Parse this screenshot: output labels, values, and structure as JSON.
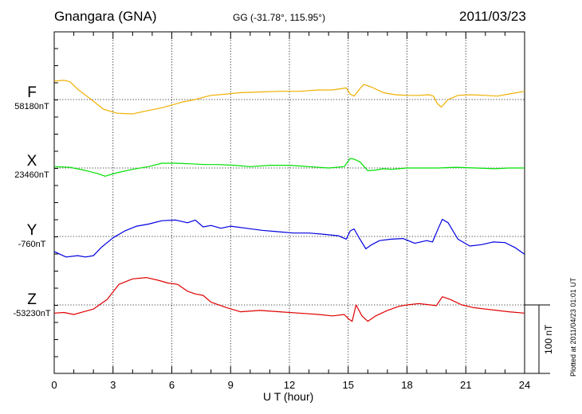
{
  "header": {
    "station": "Gnangara (GNA)",
    "coords": "GG (-31.78°, 115.95°)",
    "date": "2011/03/23",
    "plotted": "Plotted at 2011/04/23 01:01 UT"
  },
  "colors": {
    "F": "#f0b000",
    "X": "#00e000",
    "Y": "#0000e0",
    "Z": "#e00000",
    "axis": "#000000"
  },
  "chart_data": {
    "type": "line",
    "title": "Gnangara (GNA)",
    "xlabel": "U T (hour)",
    "ylabel": "",
    "xlim": [
      0,
      24
    ],
    "xticks": [
      "0",
      "3",
      "6",
      "9",
      "12",
      "15",
      "18",
      "21",
      "24"
    ],
    "scale_label": "100 nT",
    "scale_nT": 100,
    "grid": true,
    "series": [
      {
        "name": "F",
        "baseline_label": "58180nT",
        "color": "#f0b000",
        "x": [
          0,
          0.5,
          0.8,
          1.2,
          1.8,
          2.5,
          3.2,
          4.0,
          4.8,
          5.5,
          6.0,
          6.5,
          7.2,
          7.7,
          8.0,
          8.8,
          9.5,
          10.5,
          11.5,
          12.5,
          13.5,
          14.2,
          14.9,
          15.1,
          15.3,
          15.6,
          15.8,
          16.2,
          16.8,
          17.4,
          18.0,
          18.6,
          19.1,
          19.35,
          19.55,
          19.75,
          20.1,
          20.6,
          21.2,
          22.0,
          22.6,
          23.2,
          24.0
        ],
        "y": [
          27,
          28,
          26,
          15,
          2,
          -14,
          -20,
          -21,
          -16,
          -12,
          -8,
          -4,
          0,
          4,
          6,
          8,
          10,
          11,
          12,
          12,
          14,
          14,
          17,
          8,
          5,
          16,
          22,
          18,
          10,
          7,
          6,
          6,
          7,
          5,
          -6,
          -11,
          0,
          6,
          7,
          6,
          5,
          8,
          12
        ]
      },
      {
        "name": "X",
        "baseline_label": "23460nT",
        "color": "#00e000",
        "x": [
          0,
          0.8,
          1.5,
          2.2,
          2.6,
          3.2,
          4.0,
          4.8,
          5.5,
          6.2,
          7.0,
          7.7,
          8.4,
          9.2,
          10.0,
          11.0,
          12.0,
          13.0,
          14.0,
          14.8,
          15.1,
          15.3,
          15.6,
          16.0,
          16.4,
          16.8,
          17.2,
          17.6,
          18.0,
          18.8,
          19.6,
          20.5,
          21.5,
          22.5,
          23.2,
          24.0
        ],
        "y": [
          2,
          1,
          -3,
          -8,
          -12,
          -7,
          -2,
          2,
          7,
          7,
          6,
          5,
          5,
          4,
          2,
          4,
          4,
          2,
          0,
          2,
          14,
          13,
          9,
          -4,
          -3,
          -1,
          -2,
          -1,
          0,
          0,
          0,
          1,
          0,
          -1,
          0,
          0
        ]
      },
      {
        "name": "Y",
        "baseline_label": "-760nT",
        "color": "#0000e0",
        "x": [
          0,
          0.6,
          1.2,
          1.6,
          2.0,
          2.4,
          3.0,
          3.6,
          4.2,
          4.8,
          5.5,
          6.2,
          6.8,
          7.2,
          7.6,
          8.0,
          8.5,
          9.0,
          9.8,
          10.6,
          11.4,
          12.2,
          13.0,
          13.8,
          14.5,
          14.9,
          15.1,
          15.3,
          15.6,
          15.9,
          16.2,
          16.6,
          17.2,
          17.8,
          18.4,
          19.0,
          19.3,
          19.6,
          19.8,
          20.1,
          20.6,
          21.2,
          21.8,
          22.4,
          23.0,
          23.5,
          24.0
        ],
        "y": [
          -22,
          -30,
          -28,
          -30,
          -28,
          -16,
          -2,
          8,
          15,
          18,
          23,
          24,
          20,
          24,
          14,
          16,
          12,
          15,
          12,
          9,
          7,
          5,
          5,
          3,
          1,
          -4,
          8,
          11,
          -4,
          -18,
          -12,
          -6,
          -4,
          -3,
          -10,
          -6,
          -8,
          12,
          25,
          20,
          -4,
          -14,
          -12,
          -8,
          -9,
          -16,
          -26
        ]
      },
      {
        "name": "Z",
        "baseline_label": "-53230nT",
        "color": "#e00000",
        "x": [
          0,
          0.5,
          1.0,
          1.5,
          2.0,
          2.3,
          2.7,
          3.3,
          4.0,
          4.7,
          5.3,
          5.8,
          6.3,
          6.8,
          7.2,
          7.6,
          8.0,
          8.8,
          9.5,
          10.5,
          11.5,
          12.5,
          13.5,
          14.2,
          14.8,
          15.0,
          15.2,
          15.4,
          15.7,
          16.0,
          16.4,
          17.0,
          17.6,
          18.0,
          18.6,
          19.2,
          19.5,
          19.8,
          20.2,
          20.8,
          21.4,
          22.0,
          22.6,
          23.2,
          24.0
        ],
        "y": [
          -12,
          -11,
          -14,
          -10,
          -6,
          0,
          8,
          30,
          38,
          40,
          36,
          32,
          30,
          20,
          16,
          14,
          4,
          -4,
          -10,
          -8,
          -10,
          -12,
          -14,
          -16,
          -14,
          -20,
          -24,
          0,
          -16,
          -24,
          -16,
          -8,
          -2,
          0,
          2,
          0,
          -1,
          12,
          8,
          0,
          -4,
          -6,
          -8,
          -10,
          -12
        ]
      }
    ]
  }
}
